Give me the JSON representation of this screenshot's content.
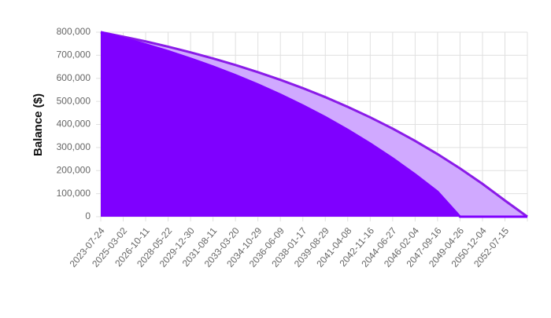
{
  "chart_data": {
    "type": "area",
    "y_label": "Balance ($)",
    "categories": [
      "2023-07-24",
      "2025-03-02",
      "2026-10-11",
      "2028-05-22",
      "2029-12-30",
      "2031-08-11",
      "2033-03-20",
      "2034-10-29",
      "2036-06-09",
      "2038-01-17",
      "2039-08-29",
      "2041-04-08",
      "2042-11-16",
      "2044-06-27",
      "2046-02-04",
      "2047-09-16",
      "2049-04-26",
      "2050-12-04",
      "2052-07-15",
      null
    ],
    "series": [
      {
        "color": "#8a1be8",
        "fill": "#d0a9ff",
        "values": [
          800000,
          780600,
          760000,
          737100,
          712600,
          686000,
          657600,
          626700,
          593400,
          557300,
          518500,
          476300,
          430800,
          381900,
          328800,
          271400,
          209200,
          142600,
          70200,
          0
        ]
      },
      {
        "color": "#7f00ff",
        "fill": "#7f00ff",
        "values": [
          800000,
          774600,
          747200,
          717600,
          685400,
          650900,
          613700,
          573200,
          529500,
          482300,
          431500,
          376400,
          316800,
          252800,
          183300,
          108200,
          0,
          0,
          0,
          0
        ]
      }
    ],
    "ylim": [
      0,
      800000
    ],
    "yticks": [
      {
        "value": 0,
        "label": "0"
      },
      {
        "value": 100000,
        "label": "100,000"
      },
      {
        "value": 200000,
        "label": "200,000"
      },
      {
        "value": 300000,
        "label": "300,000"
      },
      {
        "value": 400000,
        "label": "400,000"
      },
      {
        "value": 500000,
        "label": "500,000"
      },
      {
        "value": 600000,
        "label": "600,000"
      },
      {
        "value": 700000,
        "label": "700,000"
      },
      {
        "value": 800000,
        "label": "800,000"
      }
    ],
    "grid": true
  }
}
